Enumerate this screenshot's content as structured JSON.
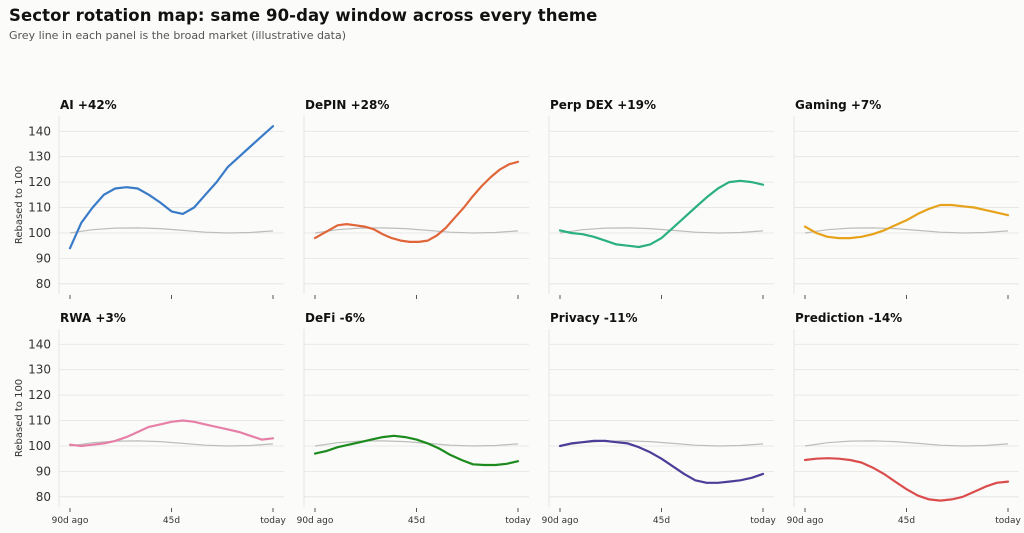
{
  "title": "Sector rotation map: same 90-day window across every theme",
  "subtitle": "Grey line in each panel is the broad market (illustrative data)",
  "colors": {
    "background": "#fbfbf9",
    "grid": "#e4e4e4",
    "market": "#bdbdbd"
  },
  "chart_data": {
    "type": "line",
    "ylabel": "Rebased to 100",
    "ylim": [
      76,
      146
    ],
    "yticks": [
      80,
      90,
      100,
      110,
      120,
      130,
      140
    ],
    "x_tick_positions": [
      0,
      45,
      90
    ],
    "x_tick_labels": [
      "90d ago",
      "45d",
      "today"
    ],
    "grid": true,
    "market": {
      "x": [
        0,
        10,
        20,
        30,
        40,
        50,
        60,
        70,
        80,
        90
      ],
      "values": [
        100,
        101.3,
        101.9,
        102.0,
        101.7,
        101.0,
        100.3,
        100.0,
        100.2,
        100.8
      ]
    },
    "panels": [
      {
        "name": "AI",
        "change": "+42%",
        "color": "#3a7bc8",
        "x": [
          0,
          5,
          10,
          15,
          20,
          25,
          30,
          35,
          40,
          45,
          50,
          55,
          60,
          65,
          70,
          75,
          80,
          85,
          90
        ],
        "values": [
          94,
          104,
          110,
          115,
          117.5,
          118,
          117.5,
          115,
          112,
          108.5,
          107.5,
          110,
          115,
          120,
          126,
          130,
          134,
          138,
          142
        ]
      },
      {
        "name": "DePIN",
        "change": "+28%",
        "color": "#e0663a",
        "x": [
          0,
          6,
          10,
          14,
          18,
          22,
          26,
          30,
          34,
          38,
          42,
          46,
          50,
          54,
          58,
          62,
          66,
          70,
          74,
          78,
          82,
          86,
          90
        ],
        "values": [
          98,
          101,
          103,
          103.5,
          103,
          102.5,
          101.5,
          99.5,
          98,
          97,
          96.5,
          96.5,
          97,
          99,
          102,
          106,
          110,
          114.5,
          118.5,
          122,
          125,
          127,
          128
        ]
      },
      {
        "name": "Perp DEX",
        "change": "+19%",
        "color": "#2bb080",
        "x": [
          0,
          5,
          10,
          15,
          20,
          25,
          30,
          35,
          40,
          45,
          50,
          55,
          60,
          65,
          70,
          75,
          80,
          85,
          90
        ],
        "values": [
          101,
          100,
          99.5,
          98.5,
          97,
          95.5,
          95,
          94.5,
          95.5,
          98,
          102,
          106,
          110,
          114,
          117.5,
          120,
          120.5,
          120,
          119
        ]
      },
      {
        "name": "Gaming",
        "change": "+7%",
        "color": "#e6a21a",
        "x": [
          0,
          5,
          10,
          15,
          20,
          25,
          30,
          35,
          40,
          45,
          50,
          55,
          60,
          65,
          70,
          75,
          80,
          85,
          90
        ],
        "values": [
          102.5,
          100,
          98.5,
          98,
          98,
          98.5,
          99.5,
          101,
          103,
          105,
          107.5,
          109.5,
          111,
          111,
          110.5,
          110,
          109,
          108,
          107
        ]
      },
      {
        "name": "RWA",
        "change": "+3%",
        "color": "#e680a8",
        "x": [
          0,
          5,
          10,
          15,
          20,
          25,
          30,
          35,
          40,
          45,
          50,
          55,
          60,
          65,
          70,
          75,
          80,
          85,
          90
        ],
        "values": [
          100.5,
          100,
          100.5,
          101,
          102,
          103.5,
          105.5,
          107.5,
          108.5,
          109.5,
          110,
          109.5,
          108.5,
          107.5,
          106.5,
          105.5,
          104,
          102.5,
          103
        ]
      },
      {
        "name": "DeFi",
        "change": "-6%",
        "color": "#1d8a1d",
        "x": [
          0,
          5,
          10,
          15,
          20,
          25,
          30,
          35,
          40,
          45,
          50,
          55,
          60,
          65,
          70,
          75,
          80,
          85,
          90
        ],
        "values": [
          97,
          98,
          99.5,
          100.5,
          101.5,
          102.5,
          103.5,
          104,
          103.5,
          102.5,
          101,
          99,
          96.5,
          94.5,
          92.8,
          92.5,
          92.5,
          93,
          94
        ]
      },
      {
        "name": "Privacy",
        "change": "-11%",
        "color": "#4c3d99",
        "x": [
          0,
          5,
          10,
          15,
          20,
          25,
          30,
          35,
          40,
          45,
          50,
          55,
          60,
          65,
          70,
          75,
          80,
          85,
          90
        ],
        "values": [
          100,
          101,
          101.5,
          102,
          102,
          101.5,
          101,
          99.5,
          97.5,
          95,
          92,
          89,
          86.5,
          85.5,
          85.5,
          86,
          86.5,
          87.5,
          89
        ]
      },
      {
        "name": "Prediction",
        "change": "-14%",
        "color": "#db4d4d",
        "x": [
          0,
          5,
          10,
          15,
          20,
          25,
          30,
          35,
          40,
          45,
          50,
          55,
          60,
          65,
          70,
          75,
          80,
          85,
          90
        ],
        "values": [
          94.5,
          95,
          95.2,
          95,
          94.5,
          93.5,
          91.5,
          89,
          86,
          83,
          80.5,
          79,
          78.5,
          79,
          80,
          82,
          84,
          85.5,
          86
        ]
      }
    ]
  }
}
